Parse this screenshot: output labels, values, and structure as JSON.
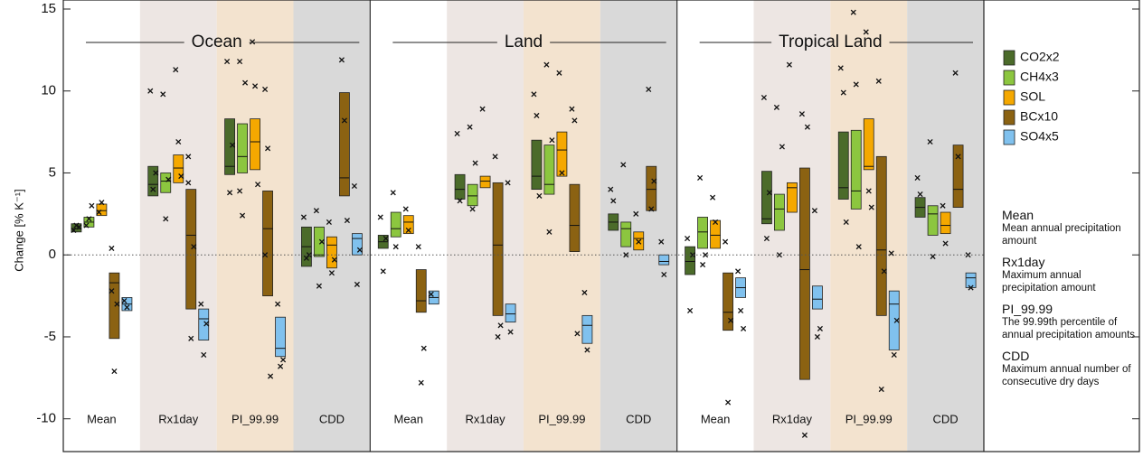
{
  "chart_data": {
    "type": "box",
    "ylabel": "Change [% K⁻¹]",
    "ylim": [
      -12,
      15
    ],
    "yticks": [
      -10,
      -5,
      0,
      5,
      10,
      15
    ],
    "series": [
      {
        "name": "CO2x2",
        "color": "#4b6b2a"
      },
      {
        "name": "CH4x3",
        "color": "#8cc63f"
      },
      {
        "name": "SOL",
        "color": "#f5a800"
      },
      {
        "name": "BCx10",
        "color": "#8b6212"
      },
      {
        "name": "SO4x5",
        "color": "#80c1ee"
      }
    ],
    "panels": [
      {
        "title": "Ocean",
        "categories": [
          "Mean",
          "Rx1day",
          "PI_99.99",
          "CDD"
        ],
        "boxes": [
          [
            {
              "low": 1.4,
              "median": 1.6,
              "high": 1.9,
              "points": [
                1.5,
                1.8,
                1.7
              ]
            },
            {
              "low": 1.7,
              "median": 2.0,
              "high": 2.3,
              "points": [
                1.8,
                2.2,
                3.0
              ]
            },
            {
              "low": 2.4,
              "median": 2.7,
              "high": 3.1,
              "points": [
                2.6,
                3.2
              ]
            },
            {
              "low": -5.1,
              "median": -1.7,
              "high": -1.1,
              "points": [
                0.4,
                -7.1,
                -3.0,
                -2.2
              ]
            },
            {
              "low": -3.4,
              "median": -3.0,
              "high": -2.6,
              "points": [
                -2.8,
                -3.2
              ]
            }
          ],
          [
            {
              "low": 3.6,
              "median": 4.3,
              "high": 5.4,
              "points": [
                10.0,
                4.0,
                5.0
              ]
            },
            {
              "low": 3.8,
              "median": 4.5,
              "high": 5.0,
              "points": [
                9.8,
                2.2,
                4.6
              ]
            },
            {
              "low": 4.4,
              "median": 5.3,
              "high": 6.1,
              "points": [
                11.3,
                6.9,
                4.8
              ]
            },
            {
              "low": -3.3,
              "median": 1.2,
              "high": 4.0,
              "points": [
                6.0,
                -5.1,
                0.5,
                4.4
              ]
            },
            {
              "low": -5.2,
              "median": -3.9,
              "high": -3.3,
              "points": [
                -3.0,
                -6.1,
                -4.2
              ]
            }
          ],
          [
            {
              "low": 4.9,
              "median": 5.4,
              "high": 8.3,
              "points": [
                11.8,
                3.8,
                6.7
              ]
            },
            {
              "low": 5.0,
              "median": 6.0,
              "high": 8.0,
              "points": [
                11.8,
                2.4,
                10.5,
                3.9
              ]
            },
            {
              "low": 5.2,
              "median": 6.9,
              "high": 8.3,
              "points": [
                13.0,
                10.3,
                4.3
              ]
            },
            {
              "low": -2.5,
              "median": 1.6,
              "high": 3.9,
              "points": [
                10.1,
                6.5,
                -7.4,
                0.0
              ]
            },
            {
              "low": -6.2,
              "median": -5.7,
              "high": -3.8,
              "points": [
                -3.0,
                -6.8,
                -6.4
              ]
            }
          ],
          [
            {
              "low": -0.7,
              "median": 0.5,
              "high": 1.7,
              "points": [
                2.3,
                -0.2,
                0.0
              ]
            },
            {
              "low": -0.1,
              "median": 0.0,
              "high": 1.7,
              "points": [
                2.7,
                -1.9,
                0.8
              ]
            },
            {
              "low": -0.8,
              "median": 0.6,
              "high": 1.1,
              "points": [
                2.0,
                -1.1,
                -0.3
              ]
            },
            {
              "low": 3.6,
              "median": 4.7,
              "high": 9.9,
              "points": [
                11.9,
                8.2,
                2.1
              ]
            },
            {
              "low": 0.0,
              "median": 1.0,
              "high": 1.3,
              "points": [
                4.2,
                -1.8,
                0.3
              ]
            }
          ]
        ]
      },
      {
        "title": "Land",
        "categories": [
          "Mean",
          "Rx1day",
          "PI_99.99",
          "CDD"
        ],
        "boxes": [
          [
            {
              "low": 0.4,
              "median": 0.8,
              "high": 1.2,
              "points": [
                2.3,
                -1.0,
                1.0
              ]
            },
            {
              "low": 1.1,
              "median": 1.6,
              "high": 2.6,
              "points": [
                3.8,
                0.5
              ]
            },
            {
              "low": 1.3,
              "median": 2.0,
              "high": 2.4,
              "points": [
                2.8,
                1.5
              ]
            },
            {
              "low": -3.5,
              "median": -2.8,
              "high": -0.9,
              "points": [
                0.5,
                -7.8,
                -5.7
              ]
            },
            {
              "low": -3.0,
              "median": -2.6,
              "high": -2.2,
              "points": [
                -2.4
              ]
            }
          ],
          [
            {
              "low": 3.4,
              "median": 4.0,
              "high": 4.9,
              "points": [
                7.4,
                3.3
              ]
            },
            {
              "low": 3.0,
              "median": 3.6,
              "high": 4.3,
              "points": [
                7.8,
                2.8,
                5.6
              ]
            },
            {
              "low": 4.1,
              "median": 4.5,
              "high": 4.8,
              "points": [
                8.9
              ]
            },
            {
              "low": -3.7,
              "median": 0.6,
              "high": 4.4,
              "points": [
                6.0,
                -5.0,
                -4.3
              ]
            },
            {
              "low": -4.1,
              "median": -3.6,
              "high": -3.0,
              "points": [
                4.4,
                -4.7
              ]
            }
          ],
          [
            {
              "low": 4.0,
              "median": 4.8,
              "high": 7.0,
              "points": [
                9.8,
                8.5,
                3.6
              ]
            },
            {
              "low": 3.7,
              "median": 4.3,
              "high": 6.7,
              "points": [
                11.6,
                1.4,
                7.0
              ]
            },
            {
              "low": 4.8,
              "median": 6.4,
              "high": 7.5,
              "points": [
                11.1,
                5.0
              ]
            },
            {
              "low": 0.2,
              "median": 1.8,
              "high": 4.3,
              "points": [
                8.9,
                8.2,
                -4.8
              ]
            },
            {
              "low": -5.4,
              "median": -4.3,
              "high": -3.7,
              "points": [
                -2.3,
                -5.8
              ]
            }
          ],
          [
            {
              "low": 1.5,
              "median": 2.0,
              "high": 2.5,
              "points": [
                4.0,
                3.3
              ]
            },
            {
              "low": 0.5,
              "median": 1.6,
              "high": 2.0,
              "points": [
                5.5,
                0.0
              ]
            },
            {
              "low": 0.3,
              "median": 1.0,
              "high": 1.4,
              "points": [
                2.5,
                0.8
              ]
            },
            {
              "low": 2.7,
              "median": 4.0,
              "high": 5.4,
              "points": [
                10.1,
                2.8,
                4.5
              ]
            },
            {
              "low": -0.6,
              "median": -0.4,
              "high": 0.0,
              "points": [
                0.8,
                -1.2
              ]
            }
          ]
        ]
      },
      {
        "title": "Tropical Land",
        "categories": [
          "Mean",
          "Rx1day",
          "PI_99.99",
          "CDD"
        ],
        "boxes": [
          [
            {
              "low": -1.2,
              "median": -0.4,
              "high": 0.5,
              "points": [
                1.0,
                -3.4,
                0.0
              ]
            },
            {
              "low": 0.4,
              "median": 1.4,
              "high": 2.3,
              "points": [
                4.7,
                -0.6,
                0.0
              ]
            },
            {
              "low": 0.4,
              "median": 1.2,
              "high": 2.1,
              "points": [
                3.5,
                2.0
              ]
            },
            {
              "low": -4.6,
              "median": -3.5,
              "high": -1.1,
              "points": [
                0.8,
                -9.0,
                -4.0
              ]
            },
            {
              "low": -2.6,
              "median": -2.0,
              "high": -1.4,
              "points": [
                -1.0,
                -3.4,
                -4.5
              ]
            }
          ],
          [
            {
              "low": 1.9,
              "median": 2.2,
              "high": 5.1,
              "points": [
                9.6,
                1.0,
                3.8
              ]
            },
            {
              "low": 1.5,
              "median": 2.8,
              "high": 3.7,
              "points": [
                9.0,
                0.0,
                6.6
              ]
            },
            {
              "low": 2.6,
              "median": 4.1,
              "high": 4.4,
              "points": [
                11.6
              ]
            },
            {
              "low": -7.6,
              "median": -0.9,
              "high": 5.3,
              "points": [
                8.6,
                -11.0,
                7.8
              ]
            },
            {
              "low": -3.3,
              "median": -2.7,
              "high": -1.9,
              "points": [
                2.7,
                -5.0,
                -4.5
              ]
            }
          ],
          [
            {
              "low": 3.4,
              "median": 4.1,
              "high": 7.5,
              "points": [
                11.4,
                9.9,
                2.0
              ]
            },
            {
              "low": 2.8,
              "median": 3.9,
              "high": 7.6,
              "points": [
                14.8,
                10.4,
                0.5
              ]
            },
            {
              "low": 5.2,
              "median": 5.4,
              "high": 8.3,
              "points": [
                13.6,
                3.9,
                2.9
              ]
            },
            {
              "low": -3.7,
              "median": 0.3,
              "high": 6.0,
              "points": [
                10.6,
                -8.2,
                -1.0
              ]
            },
            {
              "low": -5.8,
              "median": -3.0,
              "high": -2.2,
              "points": [
                0.1,
                -6.1,
                -4.0
              ]
            }
          ],
          [
            {
              "low": 2.3,
              "median": 2.9,
              "high": 3.5,
              "points": [
                4.7,
                3.7
              ]
            },
            {
              "low": 1.2,
              "median": 2.5,
              "high": 3.0,
              "points": [
                6.9,
                -0.1
              ]
            },
            {
              "low": 1.3,
              "median": 1.8,
              "high": 2.6,
              "points": [
                3.0,
                0.7
              ]
            },
            {
              "low": 2.9,
              "median": 4.0,
              "high": 6.7,
              "points": [
                11.1,
                6.0
              ]
            },
            {
              "low": -2.0,
              "median": -1.4,
              "high": -1.1,
              "points": [
                0.0,
                -2.0
              ]
            }
          ]
        ]
      }
    ],
    "definitions": [
      {
        "term": "Mean",
        "text": "Mean annual precipitation amount"
      },
      {
        "term": "Rx1day",
        "text": "Maximum annual precipitation amount"
      },
      {
        "term": "PI_99.99",
        "text": "The 99.99th percentile of annual precipitation amounts"
      },
      {
        "term": "CDD",
        "text": "Maximum annual number of consecutive dry days"
      }
    ]
  }
}
